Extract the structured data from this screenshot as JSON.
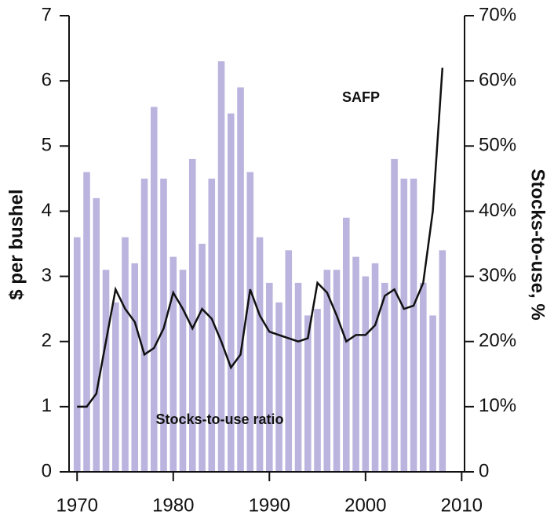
{
  "chart_data": {
    "type": "combo",
    "y_label": "$ per bushel",
    "y2_label": "Stocks-to-use, %",
    "x": [
      1970,
      1971,
      1972,
      1973,
      1974,
      1975,
      1976,
      1977,
      1978,
      1979,
      1980,
      1981,
      1982,
      1983,
      1984,
      1985,
      1986,
      1987,
      1988,
      1989,
      1990,
      1991,
      1992,
      1993,
      1994,
      1995,
      1996,
      1997,
      1998,
      1999,
      2000,
      2001,
      2002,
      2003,
      2004,
      2005,
      2006,
      2007,
      2008
    ],
    "series": [
      {
        "name": "Stocks-to-use ratio",
        "type": "bar",
        "axis": "y2",
        "color": "#bab4de",
        "values": [
          36,
          46,
          42,
          31,
          26,
          36,
          32,
          45,
          56,
          45,
          33,
          31,
          48,
          35,
          45,
          63,
          55,
          59,
          46,
          36,
          29,
          26,
          34,
          29,
          24,
          25,
          31,
          31,
          39,
          33,
          30,
          32,
          29,
          48,
          45,
          45,
          29,
          24,
          34
        ]
      },
      {
        "name": "SAFP",
        "type": "line",
        "axis": "y",
        "color": "#111111",
        "values": [
          1.0,
          1.0,
          1.2,
          2.0,
          2.8,
          2.5,
          2.3,
          1.8,
          1.9,
          2.2,
          2.75,
          2.5,
          2.2,
          2.5,
          2.35,
          2.0,
          1.6,
          1.8,
          2.8,
          2.4,
          2.15,
          2.1,
          2.05,
          2.0,
          2.05,
          2.9,
          2.75,
          2.4,
          2.0,
          2.1,
          2.1,
          2.25,
          2.7,
          2.8,
          2.5,
          2.55,
          2.9,
          4.0,
          6.2
        ]
      }
    ],
    "xlim": [
      1969,
      2010.3
    ],
    "xticks": [
      1970,
      1980,
      1990,
      2000,
      2010
    ],
    "ylim": [
      0,
      7
    ],
    "yticks": [
      0,
      1,
      2,
      3,
      4,
      5,
      6,
      7
    ],
    "y2lim": [
      0,
      70
    ],
    "y2ticks": [
      {
        "value": 0,
        "label": "0"
      },
      {
        "value": 10,
        "label": "10%"
      },
      {
        "value": 20,
        "label": "20%"
      },
      {
        "value": 30,
        "label": "30%"
      },
      {
        "value": 40,
        "label": "40%"
      },
      {
        "value": 50,
        "label": "50%"
      },
      {
        "value": 60,
        "label": "60%"
      },
      {
        "value": 70,
        "label": "70%"
      }
    ]
  }
}
